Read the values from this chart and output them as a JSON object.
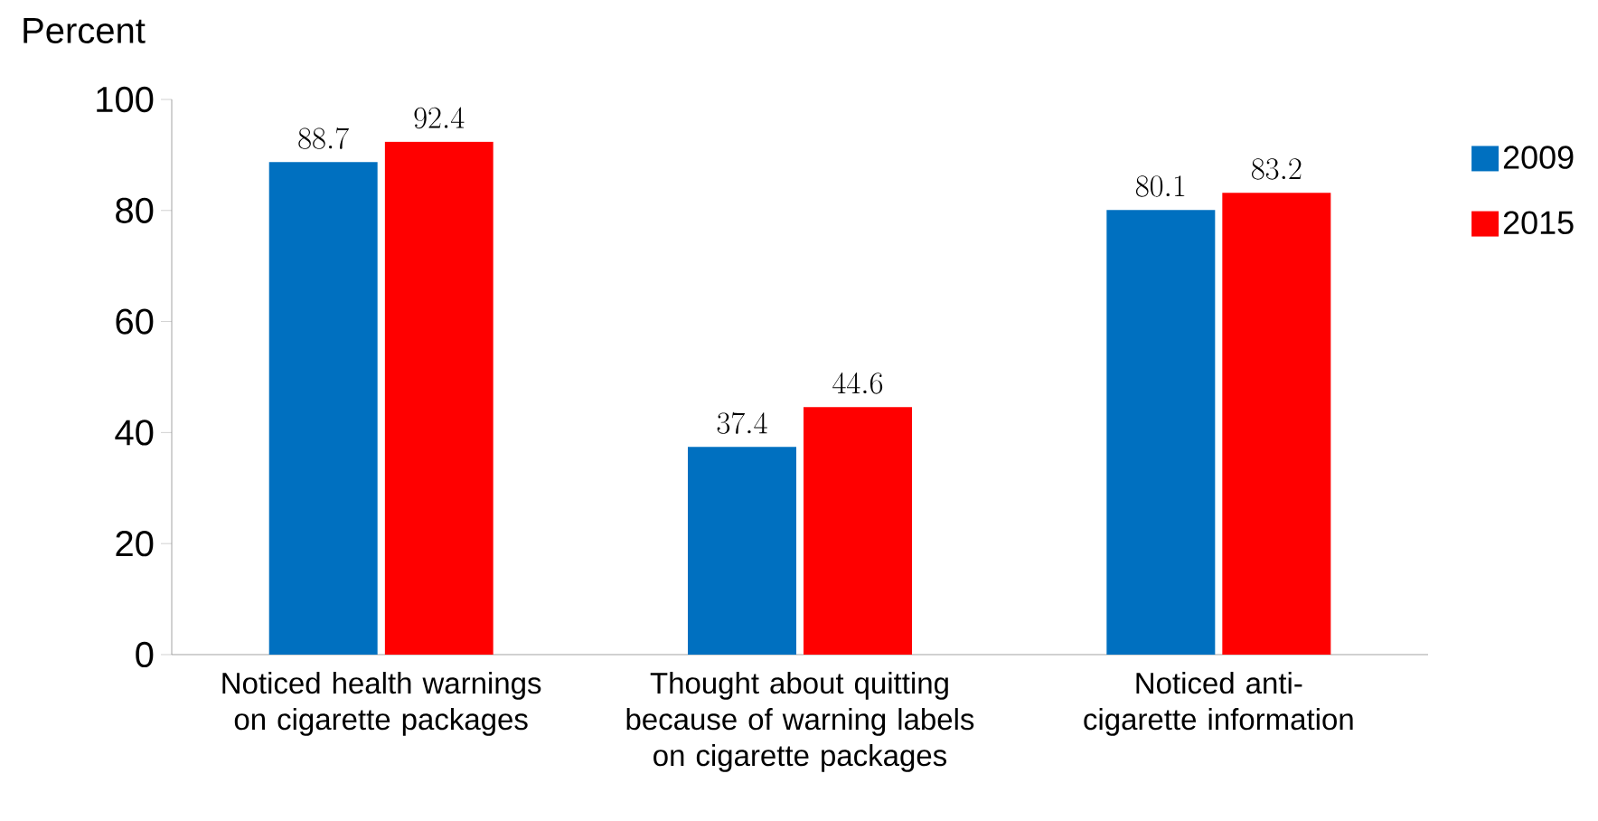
{
  "chart_data": {
    "type": "bar",
    "ylabel": "Percent",
    "categories": [
      "Noticed health warnings on cigarette packages",
      "Thought about quitting because of warning labels on cigarette packages",
      "Noticed anti-cigarette information"
    ],
    "series": [
      {
        "name": "2009",
        "color": "#0070c0",
        "values": [
          88.7,
          37.4,
          80.1
        ]
      },
      {
        "name": "2015",
        "color": "#ff0000",
        "values": [
          92.4,
          44.6,
          83.2
        ]
      }
    ],
    "ylim": [
      0,
      100
    ],
    "yticks": [
      0,
      20,
      40,
      60,
      80,
      100
    ],
    "data_labels": true,
    "legend": "right",
    "grid": false
  }
}
